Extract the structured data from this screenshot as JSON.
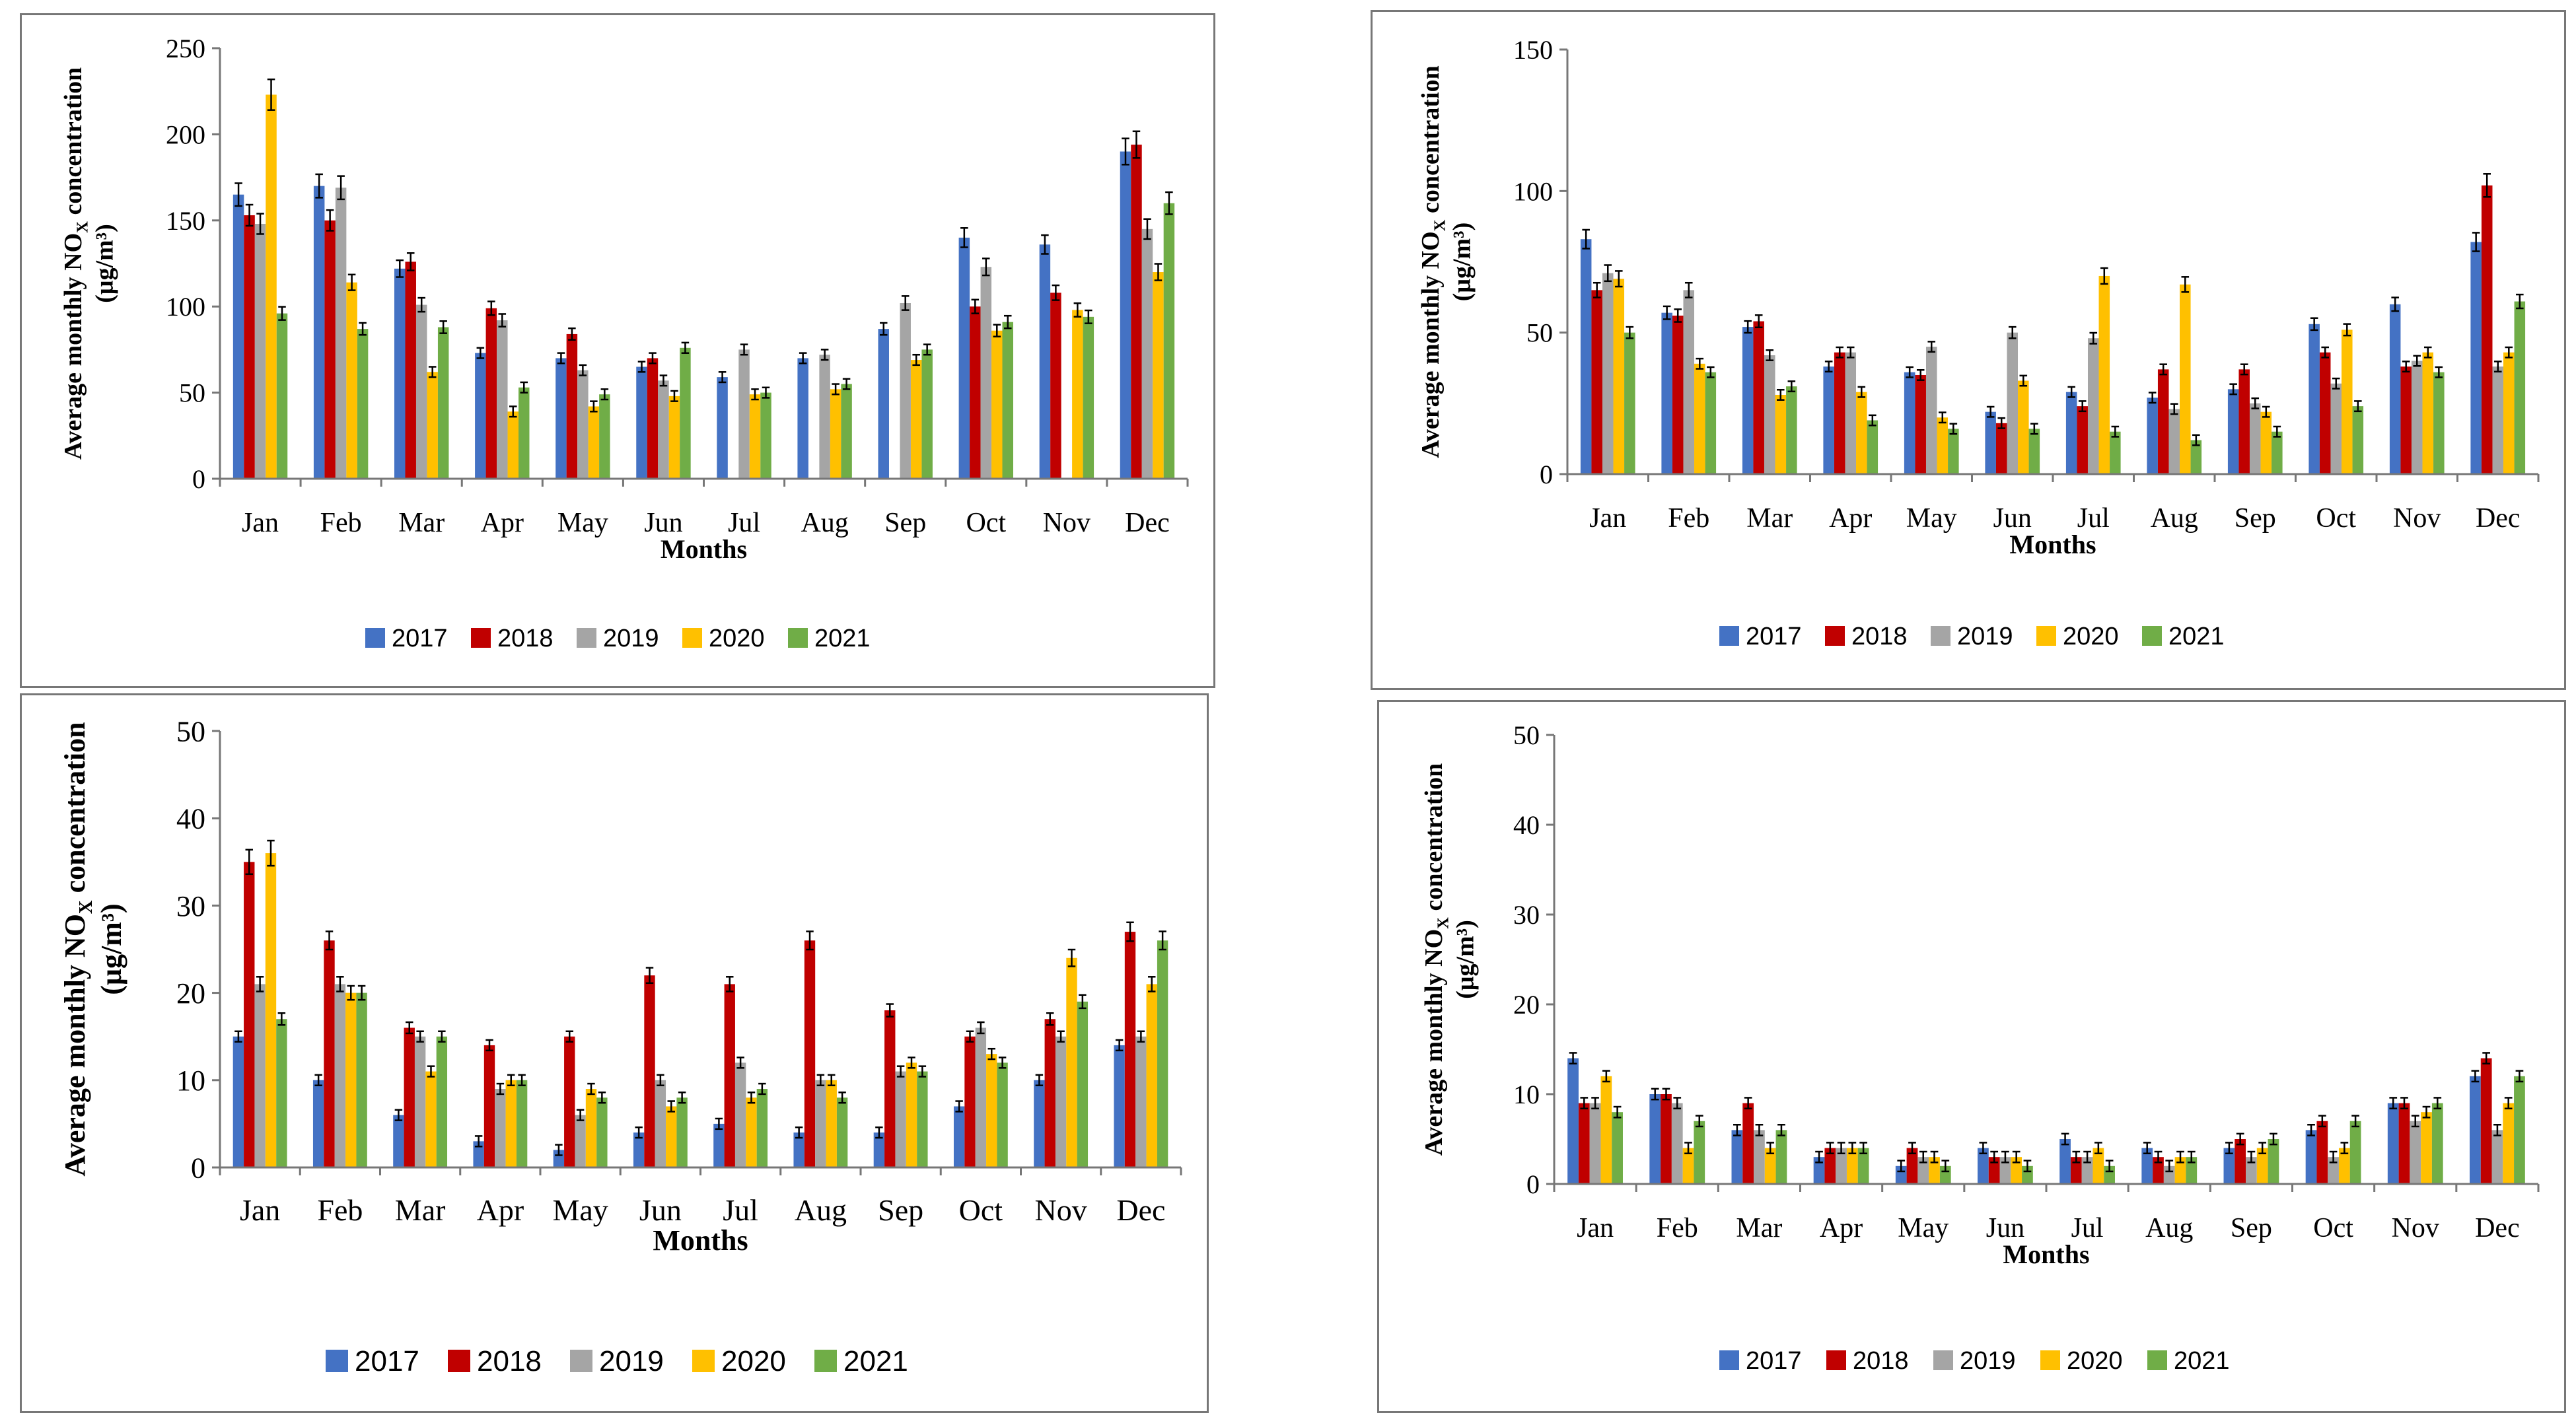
{
  "series_names": [
    "2017",
    "2018",
    "2019",
    "2020",
    "2021"
  ],
  "series_colors": [
    "#4472C4",
    "#C00000",
    "#A5A5A5",
    "#FFC000",
    "#70AD47"
  ],
  "chart_data": [
    {
      "type": "bar",
      "ylabel_line1": "Average monthly NO",
      "ylabel_sub": "X",
      "ylabel_line1_end": " concentration",
      "ylabel_line2": "(μg/m³)",
      "xlabel": "Months",
      "categories": [
        "Jan",
        "Feb",
        "Mar",
        "Apr",
        "May",
        "Jun",
        "Jul",
        "Aug",
        "Sep",
        "Oct",
        "Nov",
        "Dec"
      ],
      "ylim": [
        0,
        250
      ],
      "yticks": [
        0,
        50,
        100,
        150,
        200,
        250
      ],
      "series": [
        {
          "name": "2017",
          "values": [
            165,
            170,
            122,
            73,
            70,
            65,
            59,
            70,
            87,
            140,
            136,
            190
          ]
        },
        {
          "name": "2018",
          "values": [
            153,
            150,
            126,
            99,
            84,
            70,
            0,
            0,
            0,
            100,
            108,
            194
          ]
        },
        {
          "name": "2019",
          "values": [
            148,
            169,
            101,
            92,
            63,
            57,
            75,
            72,
            102,
            123,
            0,
            145
          ]
        },
        {
          "name": "2020",
          "values": [
            223,
            114,
            62,
            39,
            42,
            48,
            49,
            52,
            69,
            86,
            98,
            120
          ]
        },
        {
          "name": "2021",
          "values": [
            96,
            87,
            88,
            53,
            49,
            76,
            50,
            55,
            75,
            91,
            94,
            160
          ]
        }
      ]
    },
    {
      "type": "bar",
      "ylabel_line1": "Average monthly NO",
      "ylabel_sub": "X",
      "ylabel_line1_end": " concentration",
      "ylabel_line2": "(μg/m³)",
      "xlabel": "Months",
      "categories": [
        "Jan",
        "Feb",
        "Mar",
        "Apr",
        "May",
        "Jun",
        "Jul",
        "Aug",
        "Sep",
        "Oct",
        "Nov",
        "Dec"
      ],
      "ylim": [
        0,
        150
      ],
      "yticks": [
        0,
        50,
        100,
        150
      ],
      "series": [
        {
          "name": "2017",
          "values": [
            83,
            57,
            52,
            38,
            36,
            22,
            29,
            27,
            30,
            53,
            60,
            82
          ]
        },
        {
          "name": "2018",
          "values": [
            65,
            56,
            54,
            43,
            35,
            18,
            24,
            37,
            37,
            43,
            38,
            102
          ]
        },
        {
          "name": "2019",
          "values": [
            71,
            65,
            42,
            43,
            45,
            50,
            48,
            23,
            25,
            32,
            40,
            38
          ]
        },
        {
          "name": "2020",
          "values": [
            69,
            39,
            28,
            29,
            20,
            33,
            70,
            67,
            22,
            51,
            43,
            43
          ]
        },
        {
          "name": "2021",
          "values": [
            50,
            36,
            31,
            19,
            16,
            16,
            15,
            12,
            15,
            24,
            36,
            61
          ]
        }
      ]
    },
    {
      "type": "bar",
      "ylabel_line1": "Average monthly NO",
      "ylabel_sub": "X",
      "ylabel_line1_end": " concentration",
      "ylabel_line2": "(μg/m³)",
      "xlabel": "Months",
      "categories": [
        "Jan",
        "Feb",
        "Mar",
        "Apr",
        "May",
        "Jun",
        "Jul",
        "Aug",
        "Sep",
        "Oct",
        "Nov",
        "Dec"
      ],
      "ylim": [
        0,
        50
      ],
      "yticks": [
        0,
        10,
        20,
        30,
        40,
        50
      ],
      "series": [
        {
          "name": "2017",
          "values": [
            15,
            10,
            6,
            3,
            2,
            4,
            5,
            4,
            4,
            7,
            10,
            14
          ]
        },
        {
          "name": "2018",
          "values": [
            35,
            26,
            16,
            14,
            15,
            22,
            21,
            26,
            18,
            15,
            17,
            27
          ]
        },
        {
          "name": "2019",
          "values": [
            21,
            21,
            15,
            9,
            6,
            10,
            12,
            10,
            11,
            16,
            15,
            15
          ]
        },
        {
          "name": "2020",
          "values": [
            36,
            20,
            11,
            10,
            9,
            7,
            8,
            10,
            12,
            13,
            24,
            21
          ]
        },
        {
          "name": "2021",
          "values": [
            17,
            20,
            15,
            10,
            8,
            8,
            9,
            8,
            11,
            12,
            19,
            26
          ]
        }
      ]
    },
    {
      "type": "bar",
      "ylabel_line1": "Average monthly NO",
      "ylabel_sub": "X",
      "ylabel_line1_end": " concentration",
      "ylabel_line2": "(μg/m³)",
      "xlabel": "Months",
      "categories": [
        "Jan",
        "Feb",
        "Mar",
        "Apr",
        "May",
        "Jun",
        "Jul",
        "Aug",
        "Sep",
        "Oct",
        "Nov",
        "Dec"
      ],
      "ylim": [
        0,
        50
      ],
      "yticks": [
        0,
        10,
        20,
        30,
        40,
        50
      ],
      "series": [
        {
          "name": "2017",
          "values": [
            14,
            10,
            6,
            3,
            2,
            4,
            5,
            4,
            4,
            6,
            9,
            12
          ]
        },
        {
          "name": "2018",
          "values": [
            9,
            10,
            9,
            4,
            4,
            3,
            3,
            3,
            5,
            7,
            9,
            14
          ]
        },
        {
          "name": "2019",
          "values": [
            9,
            9,
            6,
            4,
            3,
            3,
            3,
            2,
            3,
            3,
            7,
            6
          ]
        },
        {
          "name": "2020",
          "values": [
            12,
            4,
            4,
            4,
            3,
            3,
            4,
            3,
            4,
            4,
            8,
            9
          ]
        },
        {
          "name": "2021",
          "values": [
            8,
            7,
            6,
            4,
            2,
            2,
            2,
            3,
            5,
            7,
            9,
            12
          ]
        }
      ]
    }
  ]
}
